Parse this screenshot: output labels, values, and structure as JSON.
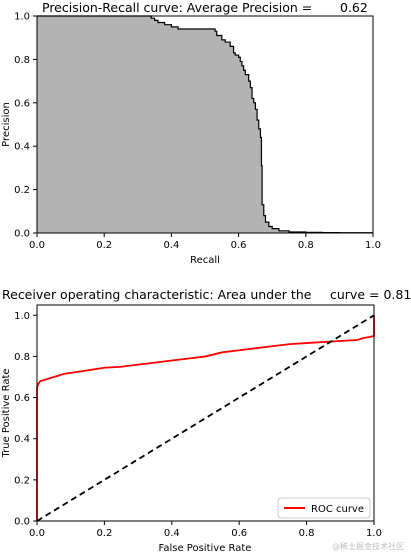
{
  "chart_data": [
    {
      "type": "area",
      "title": "Precision-Recall curve: Average Precision =",
      "title_value": "0.62",
      "xlabel": "Recall",
      "ylabel": "Precision",
      "xlim": [
        0,
        1
      ],
      "ylim": [
        0,
        1
      ],
      "xticks": [
        "0.0",
        "0.2",
        "0.4",
        "0.6",
        "0.8",
        "1.0"
      ],
      "yticks": [
        "0.0",
        "0.2",
        "0.4",
        "0.6",
        "0.8",
        "1.0"
      ],
      "grid": false,
      "fill_color": "#b3b3b3",
      "line_color": "#000000",
      "x": [
        0.0,
        0.33,
        0.34,
        0.345,
        0.35,
        0.36,
        0.37,
        0.38,
        0.39,
        0.4,
        0.41,
        0.42,
        0.5,
        0.53,
        0.535,
        0.54,
        0.55,
        0.56,
        0.57,
        0.575,
        0.58,
        0.585,
        0.59,
        0.6,
        0.605,
        0.61,
        0.615,
        0.62,
        0.625,
        0.63,
        0.635,
        0.64,
        0.645,
        0.65,
        0.655,
        0.66,
        0.665,
        0.668,
        0.67,
        0.675,
        0.68,
        0.69,
        0.7,
        0.72,
        0.75,
        0.8,
        0.85,
        0.9,
        0.95,
        1.0
      ],
      "y": [
        1.0,
        1.0,
        0.99,
        0.99,
        0.98,
        0.97,
        0.97,
        0.96,
        0.96,
        0.95,
        0.95,
        0.94,
        0.94,
        0.93,
        0.91,
        0.91,
        0.89,
        0.88,
        0.88,
        0.86,
        0.86,
        0.83,
        0.82,
        0.81,
        0.79,
        0.77,
        0.75,
        0.73,
        0.73,
        0.7,
        0.67,
        0.62,
        0.6,
        0.57,
        0.52,
        0.48,
        0.44,
        0.31,
        0.13,
        0.08,
        0.05,
        0.03,
        0.02,
        0.01,
        0.005,
        0.003,
        0.002,
        0.001,
        0.001,
        0.001
      ]
    },
    {
      "type": "line",
      "title": "Receiver operating characteristic: Area under the",
      "title_value": "curve = 0.81",
      "xlabel": "False Positive Rate",
      "ylabel": "True Positive Rate",
      "xlim": [
        0,
        1
      ],
      "ylim": [
        0,
        1.05
      ],
      "xticks": [
        "0.0",
        "0.2",
        "0.4",
        "0.6",
        "0.8",
        "1.0"
      ],
      "yticks": [
        "0.0",
        "0.2",
        "0.4",
        "0.6",
        "0.8",
        "1.0"
      ],
      "grid": false,
      "legend_position": "lower-right",
      "series": [
        {
          "name": "ROC curve",
          "color": "#ff0000",
          "style": "solid",
          "x": [
            0.0,
            0.0,
            0.005,
            0.01,
            0.02,
            0.03,
            0.04,
            0.05,
            0.06,
            0.07,
            0.08,
            0.1,
            0.12,
            0.14,
            0.16,
            0.18,
            0.2,
            0.25,
            0.3,
            0.35,
            0.4,
            0.45,
            0.5,
            0.55,
            0.6,
            0.65,
            0.7,
            0.75,
            0.8,
            0.85,
            0.9,
            0.95,
            0.97,
            0.99,
            1.0,
            1.0,
            1.0
          ],
          "y": [
            0.0,
            0.65,
            0.67,
            0.68,
            0.685,
            0.69,
            0.695,
            0.7,
            0.705,
            0.71,
            0.715,
            0.72,
            0.725,
            0.73,
            0.735,
            0.74,
            0.745,
            0.75,
            0.76,
            0.77,
            0.78,
            0.79,
            0.8,
            0.82,
            0.83,
            0.84,
            0.85,
            0.86,
            0.865,
            0.87,
            0.875,
            0.88,
            0.89,
            0.895,
            0.9,
            0.95,
            1.0
          ]
        },
        {
          "name": "",
          "color": "#000000",
          "style": "dashed",
          "x": [
            0.0,
            1.0
          ],
          "y": [
            0.0,
            1.0
          ]
        }
      ]
    }
  ],
  "watermark": "@稀土掘金技术社区"
}
